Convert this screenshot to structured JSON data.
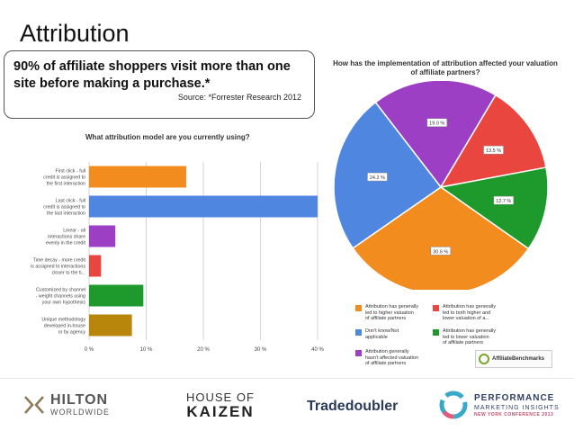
{
  "slide": {
    "title": "Attribution",
    "headline": "90% of affiliate shoppers visit more than one site before making a purchase.*",
    "source": "Source: *Forrester Research 2012"
  },
  "chart_data": [
    {
      "type": "bar",
      "orientation": "horizontal",
      "title": "What attribution model are you currently using?",
      "categories": [
        "First click - full credit is assigned to the first interaction",
        "Last click - full credit is assigned to the last interaction",
        "Linear - all interactions share evenly in the credit",
        "Time decay - more credit is assigned to interactions closer to the ti...",
        "Customized by channel - weight channels using your own hypothesis",
        "Unique methodology developed in-house or by agency"
      ],
      "category_lines": [
        [
          "First click - full",
          "credit is assigned to",
          "the first interaction"
        ],
        [
          "Last click - full",
          "credit is assigned to",
          "the last interaction"
        ],
        [
          "Linear - all",
          "interactions share",
          "evenly in the credit"
        ],
        [
          "Time decay - more credit",
          "is assigned to interactions",
          "closer to the ti..."
        ],
        [
          "Customized by channel",
          "- weight channels using",
          "your own hypothesis"
        ],
        [
          "Unique methodology",
          "developed in-house",
          "or by agency"
        ]
      ],
      "values": [
        17,
        40,
        4.6,
        2.1,
        9.5,
        7.5
      ],
      "colors": [
        "#f28c1e",
        "#4f86df",
        "#9d3fc4",
        "#e8463f",
        "#1e9a2c",
        "#b8860b"
      ],
      "xlim": [
        0,
        40
      ],
      "x_ticks": [
        0,
        10,
        20,
        30,
        40
      ],
      "x_tick_labels": [
        "0 %",
        "10 %",
        "20 %",
        "30 %",
        "40 %"
      ],
      "grid": true
    },
    {
      "type": "pie",
      "title": "How has the implementation of attribution affected your valuation of affiliate partners?",
      "title_lines": [
        "How has the implementation of attribution affected your valuation",
        "of affiliate partners?"
      ],
      "slices": [
        {
          "label": "Attribution generally hasn't affected valuation of affiliate partners",
          "value": 19.0,
          "value_label": "19.0 %",
          "color": "#9d3fc4"
        },
        {
          "label": "Attribution has generally led to both higher and lower valuation of a...",
          "value": 13.5,
          "value_label": "13.5 %",
          "color": "#e8463f"
        },
        {
          "label": "Attribution has generally led to lower valuation of affiliate partners",
          "value": 12.7,
          "value_label": "12.7 %",
          "color": "#1e9a2c"
        },
        {
          "label": "Attribution has generally led to higher valuation of affiliate partners",
          "value": 30.6,
          "value_label": "30.6 %",
          "color": "#f28c1e"
        },
        {
          "label": "Don't know/Not applicable",
          "value": 24.2,
          "value_label": "24.2 %",
          "color": "#4f86df"
        }
      ],
      "legend": [
        {
          "lines": [
            "Attribution has generally",
            "led to higher valuation",
            "of affiliate partners"
          ],
          "color": "#f28c1e"
        },
        {
          "lines": [
            "Attribution has generally",
            "led to both higher and",
            "lower valuation of a..."
          ],
          "color": "#e8463f"
        },
        {
          "lines": [
            "Don't know/Not",
            "applicable"
          ],
          "color": "#4f86df"
        },
        {
          "lines": [
            "Attribution has generally",
            "led to lower valuation",
            "of affiliate partners"
          ],
          "color": "#1e9a2c"
        },
        {
          "lines": [
            "Attribution generally",
            "hasn't affected valuation",
            "of affiliate partners"
          ],
          "color": "#9d3fc4"
        }
      ],
      "legend_position": "bottom"
    }
  ],
  "watermark": {
    "brand": "AffiliateBenchmarks"
  },
  "footer": {
    "hilton_name": "HILTON",
    "hilton_sub": "WORLDWIDE",
    "kaizen_top": "HOUSE OF",
    "kaizen_bottom": "KAIZEN",
    "tradedoubler": "Tradedoubler",
    "pmi_line1": "PERFORMANCE",
    "pmi_line2": "MARKETING INSIGHTS",
    "pmi_line3": "NEW YORK CONFERENCE 2013"
  },
  "colors": {
    "orange": "#f28c1e",
    "blue": "#4f86df",
    "purple": "#9d3fc4",
    "red": "#e8463f",
    "green": "#1e9a2c",
    "gold": "#b8860b"
  }
}
